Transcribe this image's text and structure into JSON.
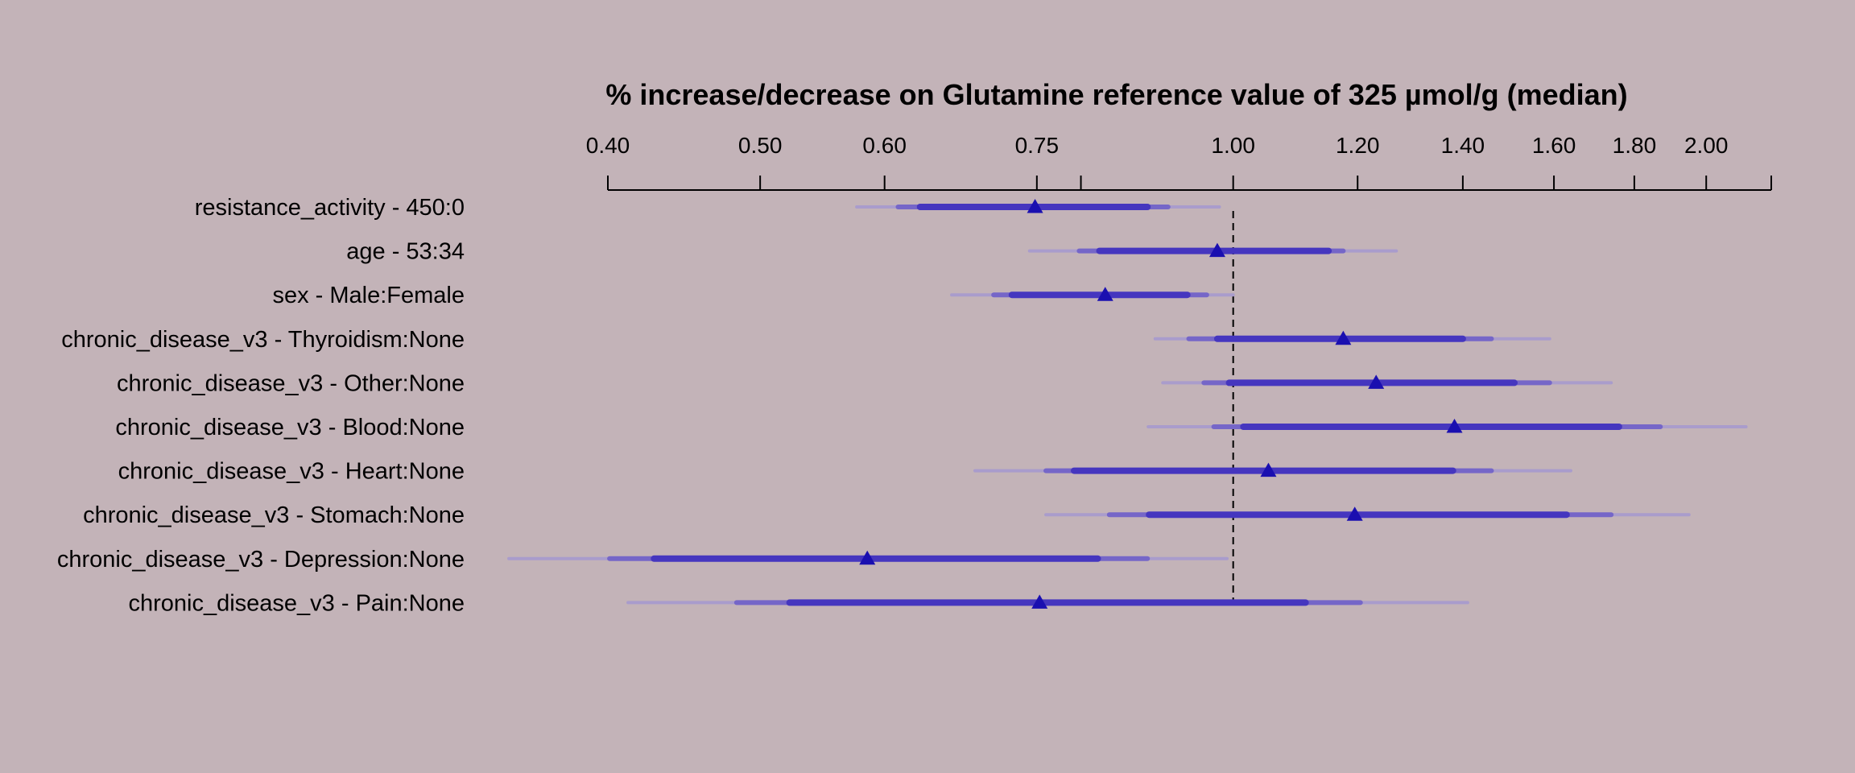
{
  "chart_data": {
    "type": "forest",
    "title": "% increase/decrease on Glutamine reference value of 325 µmol/g (median)",
    "scale": "log",
    "xlim": [
      0.4,
      2.2
    ],
    "reference_value": 1.0,
    "ticks": [
      {
        "value": 0.4,
        "label": "0.40"
      },
      {
        "value": 0.5,
        "label": "0.50"
      },
      {
        "value": 0.6,
        "label": "0.60"
      },
      {
        "value": 0.75,
        "label": "0.75"
      },
      {
        "value": 0.8,
        "label": ""
      },
      {
        "value": 1.0,
        "label": "1.00"
      },
      {
        "value": 1.2,
        "label": "1.20"
      },
      {
        "value": 1.4,
        "label": "1.40"
      },
      {
        "value": 1.6,
        "label": "1.60"
      },
      {
        "value": 1.8,
        "label": "1.80"
      },
      {
        "value": 2.0,
        "label": "2.00"
      },
      {
        "value": 2.2,
        "label": ""
      }
    ],
    "rows": [
      {
        "label": "resistance_activity - 450:0",
        "estimate": 0.748,
        "ci50": [
          0.632,
          0.882
        ],
        "ci80": [
          0.612,
          0.909
        ],
        "ci95": [
          0.576,
          0.98
        ]
      },
      {
        "label": "age - 53:34",
        "estimate": 0.977,
        "ci50": [
          0.822,
          1.15
        ],
        "ci80": [
          0.798,
          1.175
        ],
        "ci95": [
          0.742,
          1.27
        ]
      },
      {
        "label": "sex - Male:Female",
        "estimate": 0.829,
        "ci50": [
          0.723,
          0.935
        ],
        "ci80": [
          0.704,
          0.962
        ],
        "ci95": [
          0.662,
          1.0
        ]
      },
      {
        "label": "chronic_disease_v3 - Thyroidism:None",
        "estimate": 1.175,
        "ci50": [
          0.977,
          1.4
        ],
        "ci80": [
          0.937,
          1.46
        ],
        "ci95": [
          0.892,
          1.59
        ]
      },
      {
        "label": "chronic_disease_v3 - Other:None",
        "estimate": 1.233,
        "ci50": [
          0.994,
          1.51
        ],
        "ci80": [
          0.958,
          1.59
        ],
        "ci95": [
          0.902,
          1.74
        ]
      },
      {
        "label": "chronic_disease_v3 - Blood:None",
        "estimate": 1.383,
        "ci50": [
          1.015,
          1.76
        ],
        "ci80": [
          0.972,
          1.87
        ],
        "ci95": [
          0.883,
          2.12
        ]
      },
      {
        "label": "chronic_disease_v3 - Heart:None",
        "estimate": 1.053,
        "ci50": [
          0.792,
          1.38
        ],
        "ci80": [
          0.76,
          1.46
        ],
        "ci95": [
          0.685,
          1.64
        ]
      },
      {
        "label": "chronic_disease_v3 - Stomach:None",
        "estimate": 1.195,
        "ci50": [
          0.884,
          1.63
        ],
        "ci80": [
          0.834,
          1.74
        ],
        "ci95": [
          0.76,
          1.95
        ]
      },
      {
        "label": "chronic_disease_v3 - Depression:None",
        "estimate": 0.585,
        "ci50": [
          0.428,
          0.82
        ],
        "ci80": [
          0.401,
          0.882
        ],
        "ci95": [
          0.346,
          0.991
        ]
      },
      {
        "label": "chronic_disease_v3 - Pain:None",
        "estimate": 0.753,
        "ci50": [
          0.522,
          1.112
        ],
        "ci80": [
          0.483,
          1.205
        ],
        "ci95": [
          0.412,
          1.41
        ]
      }
    ],
    "colors": {
      "background": "#c3b3b8",
      "marker": "#1a0fb0",
      "ci50": "#4536bf",
      "ci80": "#7566c8",
      "ci95": "#a99ccc",
      "axis": "#000000"
    }
  }
}
